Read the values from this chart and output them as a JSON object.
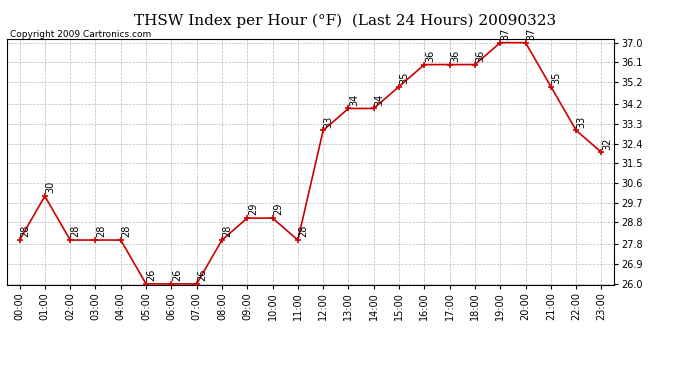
{
  "title": "THSW Index per Hour (°F)  (Last 24 Hours) 20090323",
  "copyright": "Copyright 2009 Cartronics.com",
  "hours": [
    0,
    1,
    2,
    3,
    4,
    5,
    6,
    7,
    8,
    9,
    10,
    11,
    12,
    13,
    14,
    15,
    16,
    17,
    18,
    19,
    20,
    21,
    22,
    23
  ],
  "values": [
    28,
    30,
    28,
    28,
    28,
    26,
    26,
    26,
    28,
    29,
    29,
    28,
    33,
    34,
    34,
    35,
    36,
    36,
    36,
    37,
    37,
    35,
    33,
    32
  ],
  "x_labels": [
    "00:00",
    "01:00",
    "02:00",
    "03:00",
    "04:00",
    "05:00",
    "06:00",
    "07:00",
    "08:00",
    "09:00",
    "10:00",
    "11:00",
    "12:00",
    "13:00",
    "14:00",
    "15:00",
    "16:00",
    "17:00",
    "18:00",
    "19:00",
    "20:00",
    "21:00",
    "22:00",
    "23:00"
  ],
  "y_min": 26.0,
  "y_max": 37.0,
  "y_ticks": [
    26.0,
    26.9,
    27.8,
    28.8,
    29.7,
    30.6,
    31.5,
    32.4,
    33.3,
    34.2,
    35.2,
    36.1,
    37.0
  ],
  "y_tick_labels": [
    "26.0",
    "26.9",
    "27.8",
    "28.8",
    "29.7",
    "30.6",
    "31.5",
    "32.4",
    "33.3",
    "34.2",
    "35.2",
    "36.1",
    "37.0"
  ],
  "line_color": "#cc0000",
  "marker_color": "#cc0000",
  "bg_color": "#ffffff",
  "grid_color": "#aaaaaa",
  "title_fontsize": 11,
  "tick_fontsize": 7,
  "copyright_fontsize": 6.5,
  "annot_fontsize": 7
}
